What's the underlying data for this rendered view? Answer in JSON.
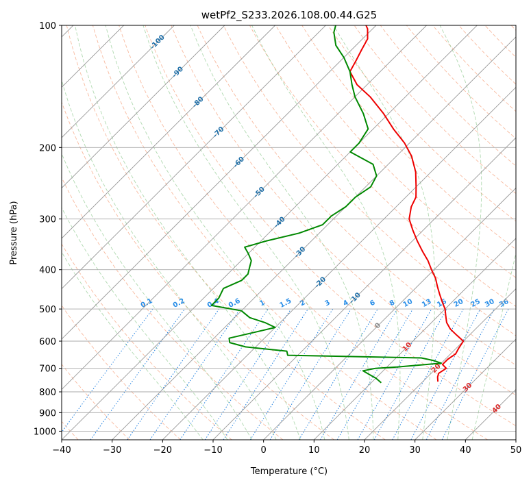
{
  "chart_data": {
    "type": "line",
    "subtype": "skew-T log-P diagram",
    "title": "wetPf2_S233.2026.108.00.44.G25",
    "xlabel": "Temperature (°C)",
    "ylabel": "Pressure (hPa)",
    "xlim": [
      -40,
      50
    ],
    "ylim": [
      1050,
      100
    ],
    "yscale": "log",
    "skew": 35,
    "grid": true,
    "x_ticks": [
      -40,
      -30,
      -20,
      -10,
      0,
      10,
      20,
      30,
      40,
      50
    ],
    "y_ticks": [
      100,
      200,
      300,
      400,
      500,
      600,
      700,
      800,
      900,
      1000
    ],
    "isotherm_labels": [
      "-100",
      "-90",
      "-80",
      "-70",
      "-60",
      "-50",
      "-40",
      "-30",
      "-20",
      "-10",
      "0",
      "10",
      "20",
      "30",
      "40"
    ],
    "mixing_ratio_labels": [
      "0.1",
      "0.2",
      "0.4",
      "0.6",
      "1",
      "1.5",
      "2",
      "3",
      "4",
      "6",
      "8",
      "10",
      "13",
      "16",
      "20",
      "25",
      "30",
      "36"
    ],
    "series": [
      {
        "name": "",
        "role": "temperature",
        "color": "#ee0000",
        "pressure": [
          755,
          735,
          720,
          700,
          685,
          665,
          645,
          625,
          600,
          580,
          560,
          540,
          520,
          500,
          480,
          460,
          440,
          420,
          400,
          380,
          360,
          340,
          320,
          300,
          280,
          265,
          250,
          230,
          210,
          195,
          180,
          165,
          150,
          140,
          130,
          122,
          115,
          108,
          102,
          100
        ],
        "temperature": [
          23,
          22,
          21.5,
          22,
          20.5,
          20.5,
          21,
          20.5,
          20,
          17.5,
          15,
          13,
          11.5,
          10,
          8,
          6,
          4,
          2,
          -0.5,
          -3,
          -6,
          -9,
          -12,
          -15,
          -17,
          -18,
          -20,
          -23,
          -27,
          -31,
          -36,
          -41,
          -47,
          -52,
          -56,
          -57,
          -58,
          -59,
          -61,
          -62
        ]
      },
      {
        "name": "",
        "role": "dewpoint",
        "color": "#008800",
        "pressure": [
          760,
          750,
          740,
          725,
          710,
          700,
          695,
          680,
          670,
          660,
          650,
          635,
          620,
          605,
          590,
          570,
          555,
          540,
          525,
          505,
          490,
          470,
          445,
          425,
          410,
          395,
          380,
          365,
          352,
          340,
          325,
          310,
          295,
          280,
          265,
          250,
          235,
          220,
          205,
          195,
          180,
          165,
          150,
          140,
          130,
          120,
          112,
          104,
          100
        ],
        "temperature": [
          12,
          11,
          10,
          8,
          6,
          8,
          12,
          20,
          18,
          15,
          -12,
          -13,
          -22,
          -26,
          -27,
          -23,
          -20,
          -23,
          -27,
          -30,
          -37,
          -37,
          -38,
          -36,
          -36,
          -37,
          -38,
          -40,
          -42,
          -39,
          -34,
          -31,
          -31,
          -30,
          -30,
          -29,
          -30,
          -33,
          -40,
          -40,
          -41,
          -45,
          -50,
          -53,
          -56,
          -60,
          -64,
          -67,
          -68
        ]
      }
    ]
  }
}
